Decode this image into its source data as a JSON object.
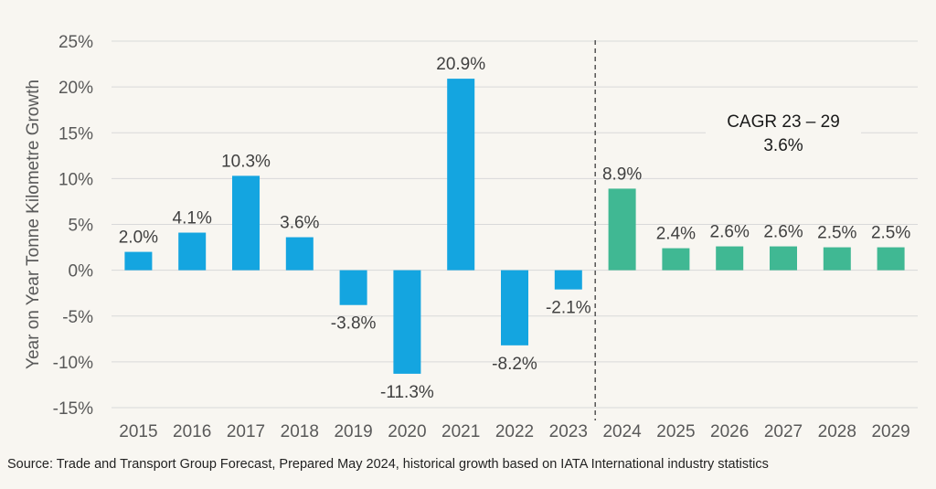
{
  "chart_data": {
    "type": "bar",
    "ylabel": "Year on Year Tonne Kilometre Growth",
    "ylim": [
      -15,
      25
    ],
    "yticks": [
      -15,
      -10,
      -5,
      0,
      5,
      10,
      15,
      20,
      25
    ],
    "ytick_labels": [
      "-15%",
      "-10%",
      "-5%",
      "0%",
      "5%",
      "10%",
      "15%",
      "20%",
      "25%"
    ],
    "grid": "horizontal",
    "categories": [
      "2015",
      "2016",
      "2017",
      "2018",
      "2019",
      "2020",
      "2021",
      "2022",
      "2023",
      "2024",
      "2025",
      "2026",
      "2027",
      "2028",
      "2029"
    ],
    "values": [
      2.0,
      4.1,
      10.3,
      3.6,
      -3.8,
      -11.3,
      20.9,
      -8.2,
      -2.1,
      8.9,
      2.4,
      2.6,
      2.6,
      2.5,
      2.5
    ],
    "value_labels": [
      "2.0%",
      "4.1%",
      "10.3%",
      "3.6%",
      "-3.8%",
      "-11.3%",
      "20.9%",
      "-8.2%",
      "-2.1%",
      "8.9%",
      "2.4%",
      "2.6%",
      "2.6%",
      "2.5%",
      "2.5%"
    ],
    "colors": {
      "historical": "#14a5e0",
      "forecast": "#40b893",
      "grid": "#d9d9d9",
      "divider": "#555555"
    },
    "forecast_from": "2024",
    "annotation": {
      "line1": "CAGR 23 – 29",
      "line2": "3.6%"
    }
  },
  "source_note": "Source: Trade and Transport Group Forecast, Prepared May 2024, historical growth based on IATA International industry statistics"
}
